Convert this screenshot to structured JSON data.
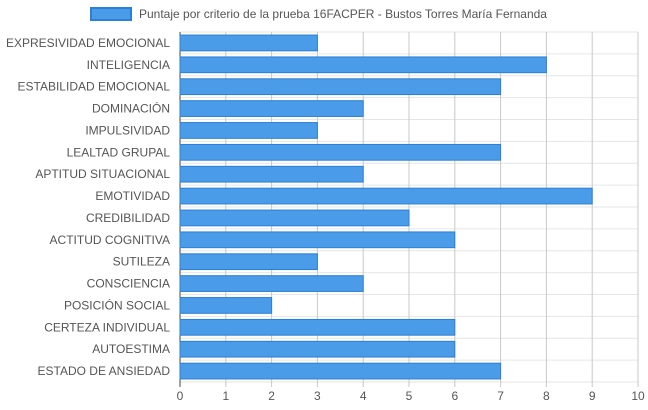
{
  "chart_data": {
    "type": "bar",
    "orientation": "horizontal",
    "legend": {
      "position": "top",
      "entries": [
        "Puntaje por criterio de la prueba 16FACPER - Bustos Torres María Fernanda"
      ]
    },
    "series": [
      {
        "name": "Puntaje por criterio de la prueba 16FACPER - Bustos Torres María Fernanda",
        "color": "#4a9be8",
        "border": "#2a7fd8",
        "values": [
          3,
          8,
          7,
          4,
          3,
          7,
          4,
          9,
          5,
          6,
          3,
          4,
          2,
          6,
          6,
          7
        ]
      }
    ],
    "categories": [
      "EXPRESIVIDAD EMOCIONAL",
      "INTELIGENCIA",
      "ESTABILIDAD EMOCIONAL",
      "DOMINACIÓN",
      "IMPULSIVIDAD",
      "LEALTAD GRUPAL",
      "APTITUD SITUACIONAL",
      "EMOTIVIDAD",
      "CREDIBILIDAD",
      "ACTITUD COGNITIVA",
      "SUTILEZA",
      "CONSCIENCIA",
      "POSICIÓN SOCIAL",
      "CERTEZA INDIVIDUAL",
      "AUTOESTIMA",
      "ESTADO DE ANSIEDAD"
    ],
    "xlim": [
      0,
      10
    ],
    "xticks": [
      "0",
      "1",
      "2",
      "3",
      "4",
      "5",
      "6",
      "7",
      "8",
      "9",
      "10"
    ],
    "grid": true,
    "colors": {
      "grid": "#e6e6e6",
      "grid_major": "#c8c8c8",
      "label": "#555555",
      "axis": "#444444"
    }
  }
}
